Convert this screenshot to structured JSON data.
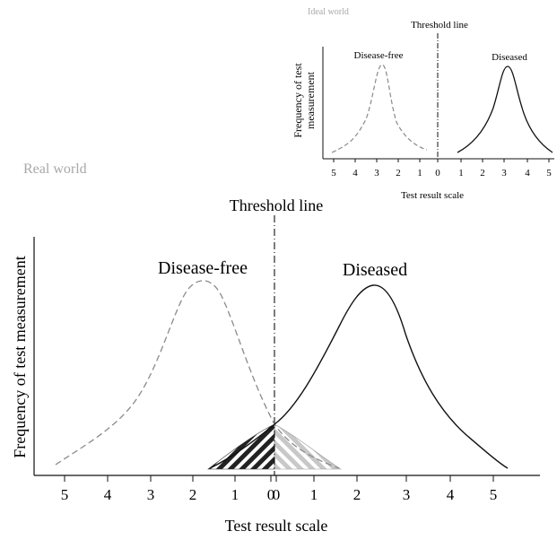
{
  "ideal": {
    "caption": "Ideal world",
    "threshold_label": "Threshold line",
    "ylabel_line1": "Frequency of test",
    "ylabel_line2": "measurement",
    "xlabel": "Test result scale",
    "disease_free_label": "Disease-free",
    "diseased_label": "Diseased",
    "ticks": [
      "5",
      "4",
      "3",
      "2",
      "1",
      "0",
      "1",
      "2",
      "3",
      "4",
      "5"
    ]
  },
  "real": {
    "caption": "Real world",
    "threshold_label": "Threshold line",
    "ylabel": "Frequency of test measurement",
    "xlabel": "Test result scale",
    "disease_free_label": "Disease-free",
    "diseased_label": "Diseased",
    "ticks": [
      "5",
      "4",
      "3",
      "2",
      "1",
      "0",
      "0",
      "1",
      "2",
      "3",
      "4",
      "5"
    ]
  },
  "colors": {
    "caption": "#a8a8a8",
    "disease_free_curve": "#8a8a8a",
    "diseased_curve": "#111111",
    "overlap_dark": "#222222",
    "overlap_light": "#c8c8c8"
  }
}
